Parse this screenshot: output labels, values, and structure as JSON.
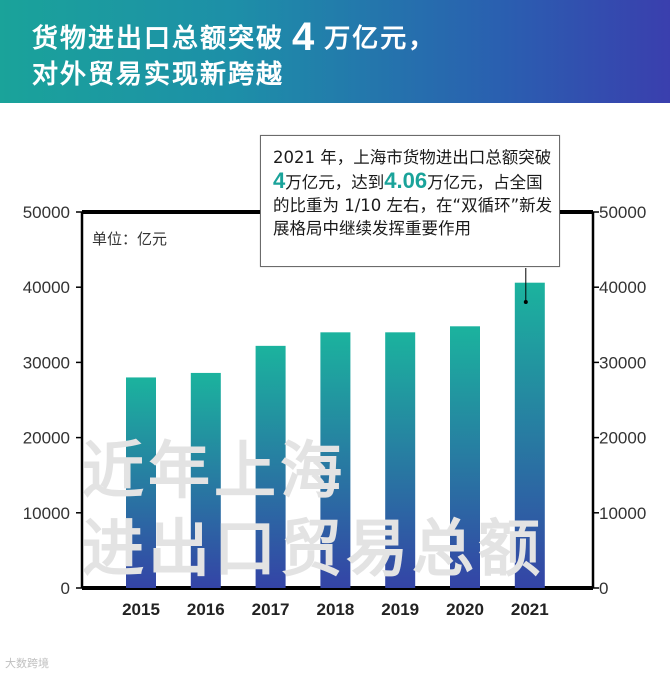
{
  "header": {
    "title_line1_a": "货物进出口总额突破",
    "title_line1_num": "4",
    "title_line1_b": "万亿元，",
    "title_line2": "对外贸易实现新跨越"
  },
  "unit_label": "单位：亿元",
  "callout": {
    "text_a": "2021 年，上海市货物进出口总额突破",
    "num_a": "4",
    "text_b": "万亿元，达到",
    "num_b": "4.06",
    "text_c": "万亿元，占全国的比重为 1/10 左右，在“双循环”新发展格局中继续发挥重要作用"
  },
  "watermark": {
    "line1": "近年上海",
    "line2": "进出口贸易总额"
  },
  "credit": "大数跨境",
  "colors": {
    "bar_top": "#1bb39e",
    "bar_bottom": "#3444a6",
    "accent": "#1aa39a"
  },
  "chart_data": {
    "type": "bar",
    "title": "近年上海进出口贸易总额",
    "ylabel": "单位：亿元",
    "categories": [
      "2015",
      "2016",
      "2017",
      "2018",
      "2019",
      "2020",
      "2021"
    ],
    "values": [
      28000,
      28600,
      32200,
      34000,
      34000,
      34800,
      40600
    ],
    "ylim": [
      0,
      50000
    ],
    "yticks": [
      0,
      10000,
      20000,
      30000,
      40000,
      50000
    ],
    "grid": false
  }
}
